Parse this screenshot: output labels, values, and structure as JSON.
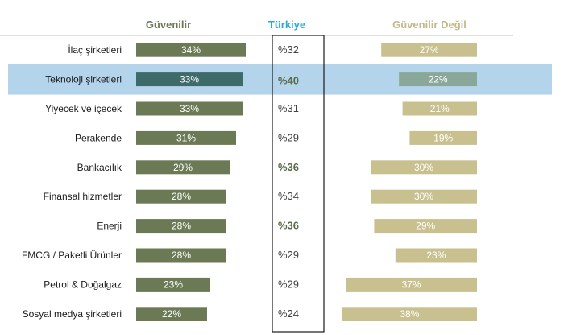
{
  "chart_data": {
    "type": "bar",
    "headers": {
      "trusted": "Güvenilir",
      "turkey": "Türkiye",
      "distrusted": "Güvenilir Değil"
    },
    "categories": [
      "İlaç şirketleri",
      "Teknoloji şirketleri",
      "Yiyecek ve içecek",
      "Perakende",
      "Bankacılık",
      "Finansal hizmetler",
      "Enerji",
      "FMCG / Paketli Ürünler",
      "Petrol & Doğalgaz",
      "Sosyal medya şirketleri"
    ],
    "series": [
      {
        "name": "Güvenilir",
        "values": [
          34,
          33,
          33,
          31,
          29,
          28,
          28,
          28,
          23,
          22
        ],
        "labels": [
          "34%",
          "33%",
          "33%",
          "31%",
          "29%",
          "28%",
          "28%",
          "28%",
          "23%",
          "22%"
        ]
      },
      {
        "name": "Türkiye",
        "values": [
          32,
          40,
          31,
          29,
          36,
          34,
          36,
          29,
          29,
          24
        ],
        "labels": [
          "%32",
          "%40",
          "%31",
          "%29",
          "%36",
          "%34",
          "%36",
          "%29",
          "%29",
          "%24"
        ]
      },
      {
        "name": "Güvenilir Değil",
        "values": [
          27,
          22,
          21,
          19,
          30,
          30,
          29,
          23,
          37,
          38
        ],
        "labels": [
          "27%",
          "22%",
          "21%",
          "19%",
          "30%",
          "30%",
          "29%",
          "23%",
          "37%",
          "38%"
        ]
      }
    ],
    "highlighted_category": "Teknoloji şirketleri",
    "bold_turkey_categories": [
      "Teknoloji şirketleri",
      "Bankacılık",
      "Enerji"
    ],
    "colors": {
      "trusted": "#6b7a55",
      "trusted_highlight": "#3f6a6a",
      "distrusted": "#c8c08e",
      "distrusted_highlight": "#8aa89a",
      "highlight_band": "#b4d4ec",
      "turkey_header": "#2ea8d6",
      "side_header": "#6b7a55",
      "distrusted_header": "#c2b88a"
    }
  }
}
